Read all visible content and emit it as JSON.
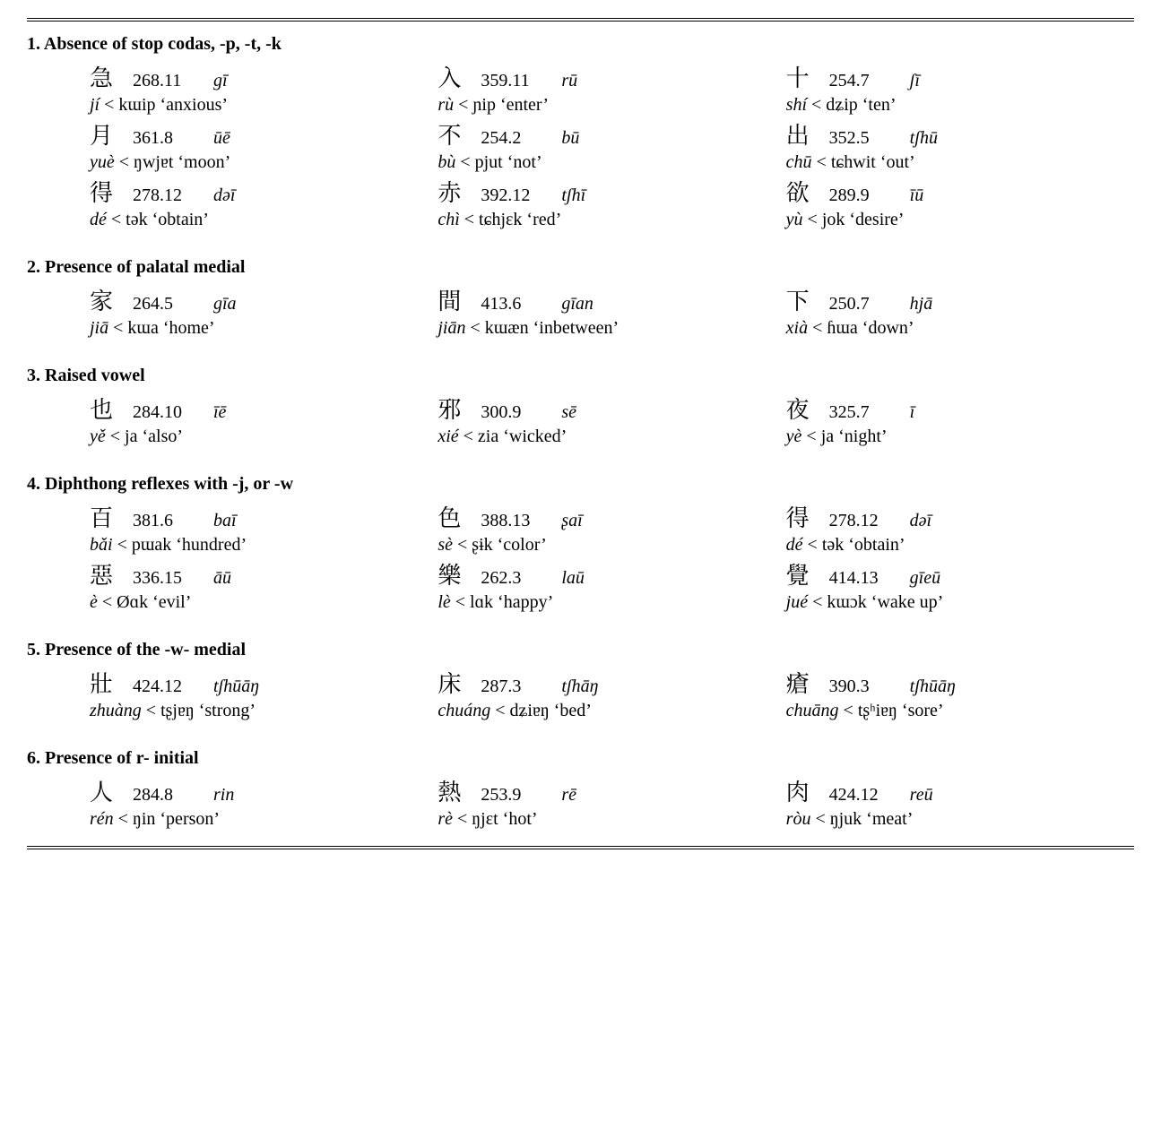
{
  "typography": {
    "body_font": "Times New Roman, serif",
    "body_fontsize_pt": 15,
    "hanzi_fontsize_pt": 19,
    "title_weight": "bold",
    "background": "#ffffff",
    "text_color": "#000000",
    "rule_style": "double"
  },
  "s1": {
    "title": "1. Absence of stop codas, -p, -t, -k",
    "r1c1_hanzi": "急",
    "r1c1_ref": "268.11",
    "r1c1_tr": "gī",
    "r1c1_pinyin": "jí",
    "r1c1_mc": " < kɯip ‘anxious’",
    "r1c2_hanzi": "入",
    "r1c2_ref": "359.11",
    "r1c2_tr": "rū",
    "r1c2_pinyin": "rù",
    "r1c2_mc": " < ɲip ‘enter’",
    "r1c3_hanzi": "十",
    "r1c3_ref": "254.7",
    "r1c3_tr": "ʃī",
    "r1c3_pinyin": "shí",
    "r1c3_mc": " < dʑip ‘ten’",
    "r2c1_hanzi": "月",
    "r2c1_ref": "361.8",
    "r2c1_tr": "ūē",
    "r2c1_pinyin": "yuè",
    "r2c1_mc": " < ŋwjɐt ‘moon’",
    "r2c2_hanzi": "不",
    "r2c2_ref": "254.2",
    "r2c2_tr": "bū",
    "r2c2_pinyin": "bù",
    "r2c2_mc": " < pjut ‘not’",
    "r2c3_hanzi": "出",
    "r2c3_ref": "352.5",
    "r2c3_tr": "tʃhū",
    "r2c3_pinyin": "chū",
    "r2c3_mc": " < tɕhwit ‘out’",
    "r3c1_hanzi": "得",
    "r3c1_ref": "278.12",
    "r3c1_tr": "dəī",
    "r3c1_pinyin": "dé",
    "r3c1_mc": " < tək ‘obtain’",
    "r3c2_hanzi": "赤",
    "r3c2_ref": "392.12",
    "r3c2_tr": "tʃhī",
    "r3c2_pinyin": "chì",
    "r3c2_mc": " < tɕhjɛk ‘red’",
    "r3c3_hanzi": "欲",
    "r3c3_ref": "289.9",
    "r3c3_tr": "īū",
    "r3c3_pinyin": "yù",
    "r3c3_mc": " < jok ‘desire’"
  },
  "s2": {
    "title": "2. Presence of palatal medial",
    "r1c1_hanzi": "家",
    "r1c1_ref": "264.5",
    "r1c1_tr": "gīa",
    "r1c1_pinyin": "jiā",
    "r1c1_mc": " < kɯa ‘home’",
    "r1c2_hanzi": "間",
    "r1c2_ref": "413.6",
    "r1c2_tr": "gīan",
    "r1c2_pinyin": "jiān",
    "r1c2_mc": " < kɯæn ‘inbetween’",
    "r1c3_hanzi": "下",
    "r1c3_ref": "250.7",
    "r1c3_tr": "hjā",
    "r1c3_pinyin": "xià",
    "r1c3_mc": " < ɦɯa ‘down’"
  },
  "s3": {
    "title": "3. Raised vowel",
    "r1c1_hanzi": "也",
    "r1c1_ref": "284.10",
    "r1c1_tr": "īē",
    "r1c1_pinyin": "yě",
    "r1c1_mc": " < ja ‘also’",
    "r1c2_hanzi": "邪",
    "r1c2_ref": "300.9",
    "r1c2_tr": "sē",
    "r1c2_pinyin": "xié",
    "r1c2_mc": " < zia ‘wicked’",
    "r1c3_hanzi": "夜",
    "r1c3_ref": "325.7",
    "r1c3_tr": "ī",
    "r1c3_pinyin": "yè",
    "r1c3_mc": " < ja ‘night’"
  },
  "s4": {
    "title": "4. Diphthong reflexes with -j, or -w",
    "r1c1_hanzi": "百",
    "r1c1_ref": "381.6",
    "r1c1_tr": "baī",
    "r1c1_pinyin": "bǎi",
    "r1c1_mc": " < pɯak ‘hundred’",
    "r1c2_hanzi": "色",
    "r1c2_ref": "388.13",
    "r1c2_tr": "ʂaī",
    "r1c2_pinyin": "sè",
    "r1c2_mc": " < ʂɨk ‘color’",
    "r1c3_hanzi": "得",
    "r1c3_ref": "278.12",
    "r1c3_tr": "dəī",
    "r1c3_pinyin": "dé",
    "r1c3_mc": " < tək ‘obtain’",
    "r2c1_hanzi": "惡",
    "r2c1_ref": "336.15",
    "r2c1_tr": "āū",
    "r2c1_pinyin": "è",
    "r2c1_mc": " < Øɑk ‘evil’",
    "r2c2_hanzi": "樂",
    "r2c2_ref": "262.3",
    "r2c2_tr": "laū",
    "r2c2_pinyin": "lè",
    "r2c2_mc": " < lɑk ‘happy’",
    "r2c3_hanzi": "覺",
    "r2c3_ref": "414.13",
    "r2c3_tr": "gīeū",
    "r2c3_pinyin": "jué",
    "r2c3_mc": " < kɯɔk ‘wake up’"
  },
  "s5": {
    "title": "5. Presence of the -w- medial",
    "r1c1_hanzi": "壯",
    "r1c1_ref": "424.12",
    "r1c1_tr": "tʃhūāŋ",
    "r1c1_pinyin": "zhuàng",
    "r1c1_mc": " < tʂjɐŋ ‘strong’",
    "r1c2_hanzi": "床",
    "r1c2_ref": "287.3",
    "r1c2_tr": "tʃhāŋ",
    "r1c2_pinyin": "chuáng",
    "r1c2_mc": " < dʑiɐŋ ‘bed’",
    "r1c3_hanzi": "瘡",
    "r1c3_ref": "390.3",
    "r1c3_tr": "tʃhūāŋ",
    "r1c3_pinyin": "chuāng",
    "r1c3_mc": " < tʂʰiɐŋ ‘sore’"
  },
  "s6": {
    "title": "6. Presence of r- initial",
    "r1c1_hanzi": "人",
    "r1c1_ref": "284.8",
    "r1c1_tr": "rin",
    "r1c1_pinyin": "rén",
    "r1c1_mc": " < ŋin ‘person’",
    "r1c2_hanzi": "熱",
    "r1c2_ref": "253.9",
    "r1c2_tr": "rē",
    "r1c2_pinyin": "rè",
    "r1c2_mc": " < ŋjɛt ‘hot’",
    "r1c3_hanzi": "肉",
    "r1c3_ref": "424.12",
    "r1c3_tr": "reū",
    "r1c3_pinyin": "ròu",
    "r1c3_mc": " < ŋjuk ‘meat’"
  }
}
